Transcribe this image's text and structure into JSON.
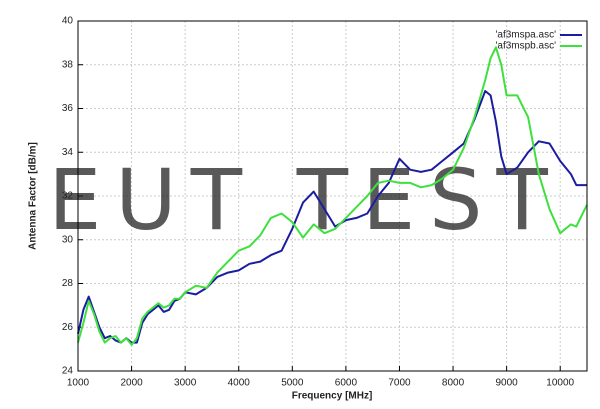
{
  "chart_data": {
    "type": "line",
    "x_label": "Frequency [MHz]",
    "y_label": "Antenna Factor [dB/m]",
    "watermark": "EUT TEST",
    "watermark_color": "#4a86c0",
    "legend": "upper right",
    "grid": true,
    "xlim": [
      1000,
      10500
    ],
    "xticks": [
      1000,
      2000,
      3000,
      4000,
      5000,
      6000,
      7000,
      8000,
      9000,
      10000
    ],
    "ylim": [
      24,
      40
    ],
    "yticks": [
      24,
      26,
      28,
      30,
      32,
      34,
      36,
      38,
      40
    ],
    "x": [
      1000,
      1100,
      1200,
      1300,
      1400,
      1500,
      1600,
      1700,
      1800,
      1900,
      2000,
      2100,
      2200,
      2300,
      2400,
      2500,
      2600,
      2700,
      2800,
      2900,
      3000,
      3200,
      3400,
      3600,
      3800,
      4000,
      4200,
      4400,
      4600,
      4800,
      5000,
      5200,
      5400,
      5600,
      5800,
      6000,
      6200,
      6400,
      6600,
      6800,
      7000,
      7200,
      7400,
      7600,
      7800,
      8000,
      8200,
      8400,
      8600,
      8700,
      8800,
      8900,
      9000,
      9200,
      9400,
      9600,
      9800,
      10000,
      10200,
      10300,
      10500
    ],
    "series": [
      {
        "name": "'af3mspa.asc'",
        "color": "#1c1ca0",
        "values": [
          25.7,
          26.8,
          27.4,
          26.7,
          26.0,
          25.5,
          25.6,
          25.4,
          25.3,
          25.5,
          25.3,
          25.3,
          26.2,
          26.6,
          26.8,
          27.0,
          26.7,
          26.8,
          27.2,
          27.3,
          27.6,
          27.5,
          27.8,
          28.3,
          28.5,
          28.6,
          28.9,
          29.0,
          29.3,
          29.5,
          30.5,
          31.7,
          32.2,
          31.4,
          30.6,
          30.9,
          31.0,
          31.2,
          32.0,
          32.6,
          33.7,
          33.2,
          33.1,
          33.2,
          33.6,
          34.0,
          34.4,
          35.5,
          36.8,
          36.6,
          35.4,
          33.8,
          33.0,
          33.3,
          34.0,
          34.5,
          34.4,
          33.6,
          33.0,
          32.5,
          32.5
        ]
      },
      {
        "name": "'af3mspb.asc'",
        "color": "#3ee03e",
        "values": [
          25.3,
          26.2,
          27.2,
          26.6,
          25.8,
          25.3,
          25.5,
          25.6,
          25.3,
          25.5,
          25.2,
          25.5,
          26.4,
          26.7,
          26.9,
          27.1,
          26.9,
          27.0,
          27.3,
          27.3,
          27.6,
          27.9,
          27.8,
          28.5,
          29.0,
          29.5,
          29.7,
          30.2,
          31.0,
          31.2,
          30.8,
          30.1,
          30.7,
          30.3,
          30.5,
          31.0,
          31.5,
          32.0,
          32.6,
          32.7,
          32.6,
          32.6,
          32.4,
          32.5,
          32.8,
          33.2,
          34.2,
          35.6,
          37.3,
          38.3,
          38.8,
          38.0,
          36.6,
          36.6,
          35.6,
          33.0,
          31.4,
          30.3,
          30.7,
          30.6,
          31.6
        ]
      }
    ]
  }
}
